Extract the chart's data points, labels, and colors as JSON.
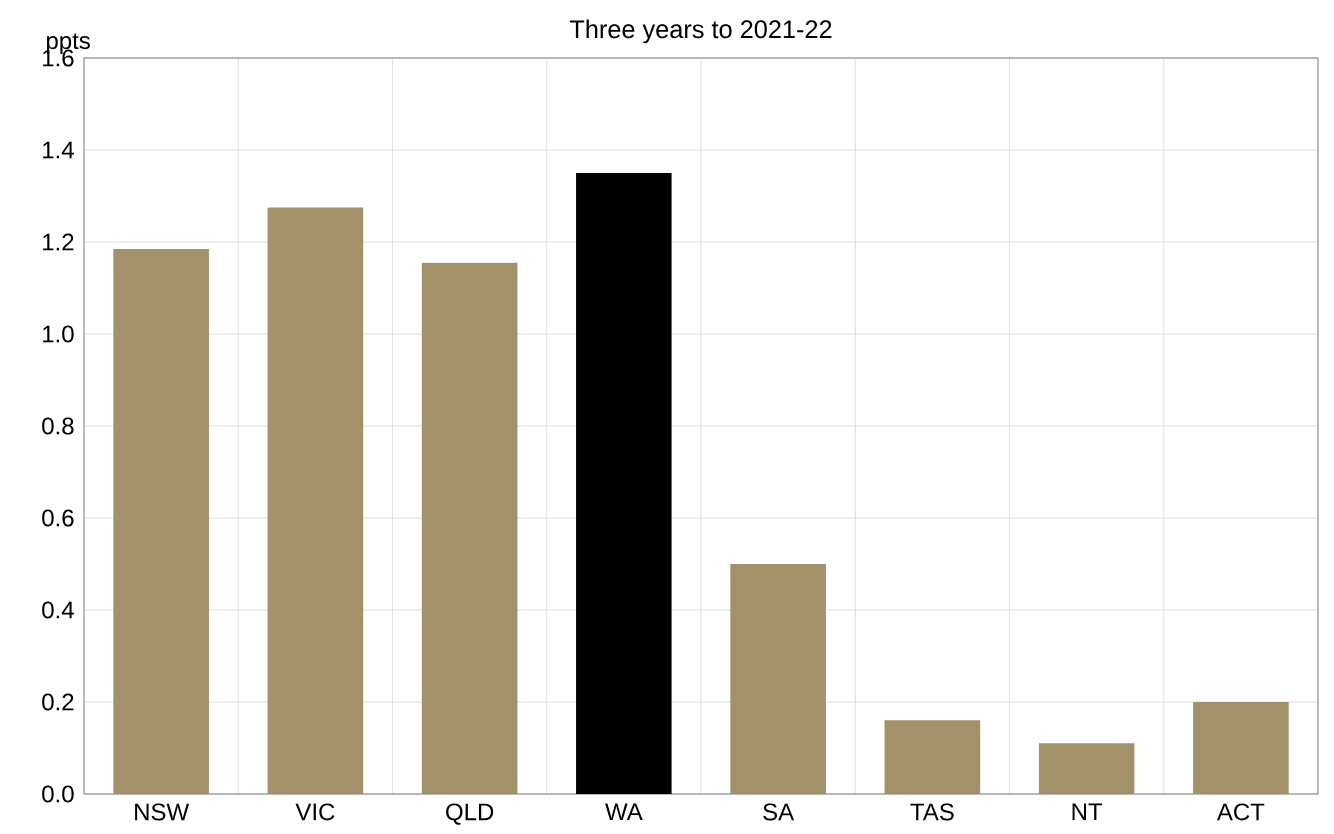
{
  "chart_data": {
    "type": "bar",
    "title": "Three years to 2021-22",
    "ylabel": "ppts",
    "categories": [
      "NSW",
      "VIC",
      "QLD",
      "WA",
      "SA",
      "TAS",
      "NT",
      "ACT"
    ],
    "values": [
      1.185,
      1.275,
      1.155,
      1.35,
      0.5,
      0.16,
      0.11,
      0.2
    ],
    "colors": [
      "#a39169",
      "#a39169",
      "#a39169",
      "#000000",
      "#a39169",
      "#a39169",
      "#a39169",
      "#a39169"
    ],
    "ylim": [
      0,
      1.6
    ],
    "yticks": [
      {
        "value": 0,
        "label": "0.0"
      },
      0.2,
      0.4,
      0.6,
      0.8,
      {
        "value": 1,
        "label": "1.0"
      },
      1.2,
      1.4,
      1.6
    ],
    "grid": true
  }
}
